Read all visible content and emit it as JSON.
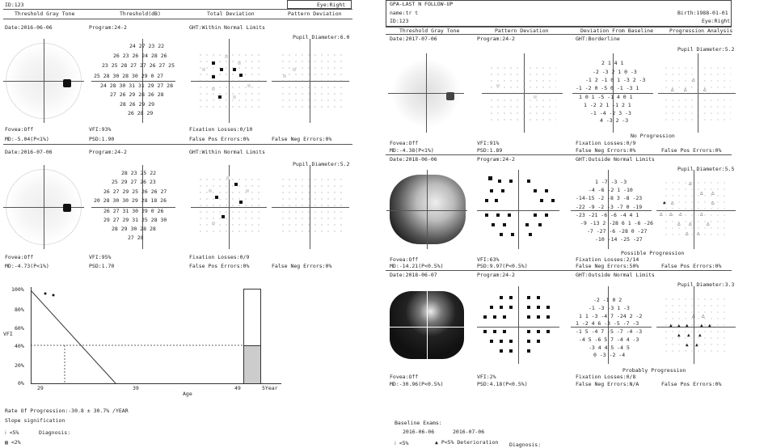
{
  "left": {
    "id": "ID:123",
    "eye": "Eye:Right",
    "headers": [
      "Threshold Gray Tone",
      "Threshold(dB)",
      "Total Deviation",
      "Pattern Deviation"
    ],
    "tests": [
      {
        "date": "Date:2016-06-06",
        "program": "Program:24-2",
        "ght": "GHT:Within Normal Limits",
        "pupil": "Pupil Diameter:6.0",
        "fovea": "Fovea:Off",
        "vfi": "VFI:93%",
        "fix": "Fixation Losses:0/10",
        "md": "MD:-5.04(P<1%)",
        "psd": "PSD:1.90",
        "fpos": "False Pos Errors:0%",
        "fneg": "False Neg Errors:0%",
        "rows": [
          "24 27 23 22",
          "26 23 26 24 28 26",
          "23 25 28 27 27 26 27 25",
          "25 28 30 28 30 29 0 27",
          "24 28 30 31 31 29 27 28",
          "27 26 29 28 26 28",
          "28 26 29 29",
          "26 28 29"
        ]
      },
      {
        "date": "Date:2016-07-06",
        "program": "Program:24-2",
        "ght": "GHT:Within Normal Limits",
        "pupil": "Pupil Diameter:5.2",
        "fovea": "Fovea:Off",
        "vfi": "VFI:95%",
        "fix": "Fixation Losses:0/9",
        "md": "MD:-4.73(P<1%)",
        "psd": "PSD:1.70",
        "fpos": "False Pos Errors:0%",
        "fneg": "False Neg Errors:0%",
        "rows": [
          "28 23 25 22",
          "25 29 27 26 23",
          "26 27 29 25 26 26 27",
          "20 28 30 30 29 28 18 26",
          "26 27 31 30 29 0 26",
          "29 27 29 31 25 28 30",
          "28 29 30 28 28",
          "27 28"
        ]
      }
    ],
    "chart": {
      "yticks": [
        "100%",
        "80%",
        "60%",
        "40%",
        "20%",
        "0%"
      ],
      "ylabel": "VFI",
      "xticks": [
        "29",
        "39",
        "49",
        "5Year"
      ],
      "xlabel": "Age"
    },
    "rate": "Rate Of Progression:-30.8 ± 30.7% /YEAR",
    "slope": "Slope signification",
    "legend1": "<5%",
    "legend2": "<2%",
    "diagnosis": "Diagnosis:"
  },
  "right": {
    "title": "GPA-LAST N FOLLOW-UP",
    "name": "name:tr t",
    "birth": "Birth:1988-01-01",
    "id": "ID:123",
    "eye": "Eye:Right",
    "headers": [
      "Threshold Gray Tone",
      "Pattern Deviation",
      "Deviation From Baseline",
      "Progression Analysis"
    ],
    "tests": [
      {
        "date": "Date:2017-07-06",
        "program": "Program:24-2",
        "ght": "GHT:Borderline",
        "pupil": "Pupil Diameter:5.2",
        "status": "No Progression",
        "fovea": "Fovea:Off",
        "vfi": "VFI:91%",
        "fix": "Fixation Losses:0/9",
        "md": "MD:-4.38(P<1%)",
        "psd": "PSD:1.89",
        "fpos": "False Pos Errors:0%",
        "fneg": "False Neg Errors:0%",
        "rows": [
          "2 1 4 1",
          "-2 -3 2 1 0 -3",
          "-1 2 -1 0 1 -3 2 -3",
          "-1 -2 0 -5 0 -1 -3 1",
          "1 0 1 -5 -1 4 0 1",
          "1 -2 2 1 -1 2 1",
          "-1 -4 -2 3 -3",
          "4 -3 2 -3"
        ]
      },
      {
        "date": "Date:2018-06-06",
        "program": "Program:24-2",
        "ght": "GHT:Outside Normal Limits",
        "pupil": "Pupil Diameter:5.5",
        "status": "Possible Progression",
        "fovea": "Fovea:Off",
        "vfi": "VFI:63%",
        "fix": "Fixation Losses:2/14",
        "md": "MD:-14.21(P<0.5%)",
        "psd": "PSD:9.97(P<0.5%)",
        "fpos": "False Pos Errors:0%",
        "fneg": "False Neg Errors:50%",
        "rows": [
          "1 -7 -3 -3",
          "-4 -6 -2 1 -10",
          "-14-15 -2 -8 3 -8 -23",
          "-22 -9 -2 -3 -7 0 -19",
          "-23 -21 -6 -6 -4 4 1",
          "-9 -13 2 -28 6 1 -6 -26",
          "-7 -27 -6 -28 0 -27",
          "-10 -14 -25 -27"
        ]
      },
      {
        "date": "Date:2018-06-07",
        "program": "Program:24-2",
        "ght": "GHT:Outside Normal Limits",
        "pupil": "Pupil Diameter:3.3",
        "status": "Probably Progression",
        "fovea": "Fovea:Off",
        "vfi": "VFI:2%",
        "fix": "Fixation Losses:0/8",
        "md": "MD:-30.96(P<0.5%)",
        "psd": "PSD:4.18(P<0.5%)",
        "fpos": "False Pos Errors:0%",
        "fneg": "False Neg Errors:N/A",
        "rows": [
          "-2 -1 0 2",
          "-1 -3 -3 1 -3",
          "1 1 -3 -4 7 -24 2 -2",
          "1 -2 4 6 -3 -5 -7 -3",
          "-1 5 -4 7 -5 -7 -4 -3",
          "-4 5 -6 5 7 -4 4 -3",
          "-3 4 4 5 -4 5",
          "0 -3 -2 -4"
        ]
      }
    ],
    "baseline": "Baseline Exams:",
    "baseline_dates": [
      "2016-06-06",
      "2016-07-06"
    ],
    "legend_p5": "<5%",
    "legend_det": "P<5% Deterioration",
    "diagnosis": "Diagnosis:"
  }
}
